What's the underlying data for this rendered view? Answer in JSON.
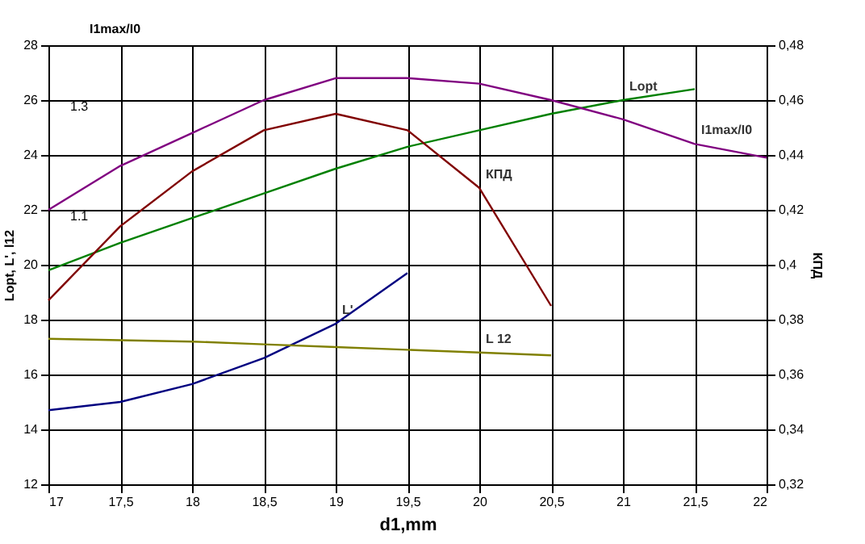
{
  "chart_data": {
    "type": "line",
    "xlabel": "d1,mm",
    "ylabel": "Lopt, L', l12",
    "y2label": "КПД",
    "y3label": "I1max/I0",
    "x": [
      17,
      17.5,
      18,
      18.5,
      19,
      19.5,
      20,
      20.5,
      21,
      21.5,
      22
    ],
    "xlim": [
      17,
      22
    ],
    "xticks": [
      17,
      {
        "value": 17.5,
        "label": "17,5"
      },
      18,
      {
        "value": 18.5,
        "label": "18,5"
      },
      19,
      {
        "value": 19.5,
        "label": "19,5"
      },
      20,
      {
        "value": 20.5,
        "label": "20,5"
      },
      21,
      {
        "value": 21.5,
        "label": "21,5"
      },
      22
    ],
    "ylim": [
      12,
      28
    ],
    "yticks": [
      12,
      14,
      16,
      18,
      20,
      22,
      24,
      26,
      28
    ],
    "y2lim": [
      0.32,
      0.48
    ],
    "y2ticks": [
      {
        "value": 0.32,
        "label": "0,32"
      },
      {
        "value": 0.34,
        "label": "0,34"
      },
      {
        "value": 0.36,
        "label": "0,36"
      },
      {
        "value": 0.38,
        "label": "0,38"
      },
      {
        "value": 0.4,
        "label": "0,4"
      },
      {
        "value": 0.42,
        "label": "0,42"
      },
      {
        "value": 0.44,
        "label": "0,44"
      },
      {
        "value": 0.46,
        "label": "0,46"
      },
      {
        "value": 0.48,
        "label": "0,48"
      }
    ],
    "y3lim": [
      0.6,
      1.4
    ],
    "y3ticks": [
      1.1,
      1.3
    ],
    "grid": true,
    "line_style": "solid",
    "marker": "none",
    "series": [
      {
        "name": "Lopt",
        "color": "#008000",
        "values": [
          19.8,
          20.8,
          21.7,
          22.6,
          23.5,
          24.3,
          24.9,
          25.5,
          26.0,
          26.4,
          null
        ]
      },
      {
        "name": "I1max/I0",
        "color": "#800080",
        "axis": "y3",
        "values": [
          1.1,
          1.18,
          1.24,
          1.3,
          1.34,
          1.34,
          1.33,
          1.3,
          1.265,
          1.22,
          1.195
        ]
      },
      {
        "name": "КПД",
        "color": "#800000",
        "axis": "y2",
        "values": [
          0.387,
          0.414,
          0.434,
          0.449,
          0.455,
          0.449,
          0.428,
          0.385,
          null,
          null,
          null
        ]
      },
      {
        "name": "L'",
        "color": "#000080",
        "values": [
          14.7,
          15.0,
          15.65,
          16.6,
          17.85,
          19.7,
          null,
          null,
          null,
          null,
          null
        ]
      },
      {
        "name": "L 12",
        "color": "#808000",
        "values": [
          17.3,
          17.25,
          17.2,
          17.1,
          17.0,
          16.9,
          16.8,
          16.7,
          null,
          null,
          null
        ]
      }
    ]
  }
}
